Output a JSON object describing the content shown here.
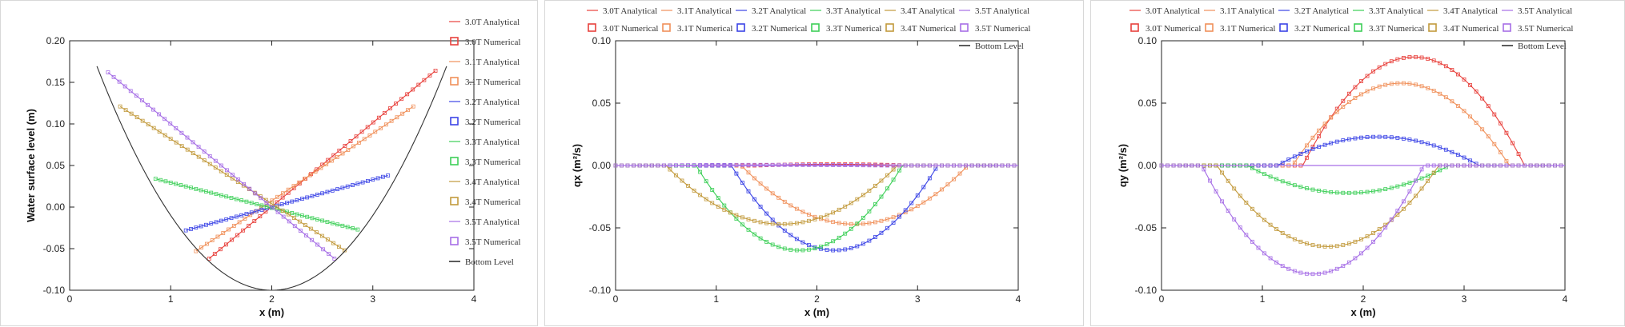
{
  "colors": {
    "3.0T": "#e8413c",
    "3.1T": "#f0905a",
    "3.2T": "#3b44e6",
    "3.3T": "#3dcf58",
    "3.4T": "#c29a3c",
    "3.5T": "#a66ee6",
    "bottom": "#333333"
  },
  "chart_data": [
    {
      "type": "line",
      "xlabel": "x (m)",
      "ylabel": "Water surface level (m)",
      "xlim": [
        0,
        4
      ],
      "ylim": [
        -0.1,
        0.2
      ],
      "xticks": [
        "0",
        "1",
        "2",
        "3",
        "4"
      ],
      "yticks": [
        "-0.10",
        "-0.05",
        "0.00",
        "0.05",
        "0.10",
        "0.15",
        "0.20"
      ],
      "legend_position": "right",
      "legend": [
        "3.0T Analytical",
        "3.0T Numerical",
        "3.1T Analytical",
        "3.1T Numerical",
        "3.2T Analytical",
        "3.2T Numerical",
        "3.3T Analytical",
        "3.3T Numerical",
        "3.4T Analytical",
        "3.4T Numerical",
        "3.5T Analytical",
        "3.5T Numerical",
        "Bottom Level"
      ],
      "bottom_level": {
        "x": [
          0.27,
          0.6,
          1.0,
          1.4,
          1.8,
          2.0,
          2.2,
          2.6,
          3.0,
          3.4,
          3.73
        ],
        "y": [
          0.2,
          0.116,
          0.044,
          -0.016,
          -0.064,
          -0.1,
          -0.096,
          -0.064,
          -0.016,
          0.044,
          0.2
        ]
      },
      "series": [
        {
          "name": "3.0T",
          "x": [
            1.38,
            3.62
          ],
          "y": [
            -0.062,
            0.164
          ]
        },
        {
          "name": "3.1T",
          "x": [
            1.25,
            3.4
          ],
          "y": [
            -0.053,
            0.121
          ]
        },
        {
          "name": "3.2T",
          "x": [
            1.15,
            3.15
          ],
          "y": [
            -0.028,
            0.038
          ]
        },
        {
          "name": "3.3T",
          "x": [
            0.85,
            2.85
          ],
          "y": [
            0.034,
            -0.027
          ]
        },
        {
          "name": "3.4T",
          "x": [
            0.5,
            2.72
          ],
          "y": [
            0.121,
            -0.052
          ]
        },
        {
          "name": "3.5T",
          "x": [
            0.38,
            2.62
          ],
          "y": [
            0.162,
            -0.062
          ]
        }
      ]
    },
    {
      "type": "line",
      "xlabel": "x (m)",
      "ylabel": "qx (m²/s)",
      "xlim": [
        0,
        4
      ],
      "ylim": [
        -0.1,
        0.1
      ],
      "xticks": [
        "0",
        "1",
        "2",
        "3",
        "4"
      ],
      "yticks": [
        "-0.10",
        "-0.05",
        "0.00",
        "0.05",
        "0.10"
      ],
      "legend_position": "top",
      "legend": [
        "3.0T Analytical",
        "3.1T Analytical",
        "3.2T Analytical",
        "3.3T Analytical",
        "3.4T Analytical",
        "3.5T Analytical",
        "3.0T Numerical",
        "3.1T Numerical",
        "3.2T Numerical",
        "3.3T Numerical",
        "3.4T Numerical",
        "3.5T Numerical",
        "Bottom Level"
      ],
      "series": [
        {
          "name": "3.0T",
          "x0": 1.4,
          "x1": 2.9,
          "peak": 0.001
        },
        {
          "name": "3.1T",
          "x0": 1.25,
          "x1": 3.5,
          "peak": -0.047
        },
        {
          "name": "3.2T",
          "x0": 1.15,
          "x1": 3.2,
          "peak": -0.068
        },
        {
          "name": "3.3T",
          "x0": 0.8,
          "x1": 2.85,
          "peak": -0.068
        },
        {
          "name": "3.4T",
          "x0": 0.5,
          "x1": 2.8,
          "peak": -0.047
        },
        {
          "name": "3.5T",
          "x0": 0.4,
          "x1": 2.7,
          "peak": 0.0005
        }
      ]
    },
    {
      "type": "line",
      "xlabel": "x (m)",
      "ylabel": "qy (m²/s)",
      "xlim": [
        0,
        4
      ],
      "ylim": [
        -0.1,
        0.1
      ],
      "xticks": [
        "0",
        "1",
        "2",
        "3",
        "4"
      ],
      "yticks": [
        "-0.10",
        "-0.05",
        "0.00",
        "0.05",
        "0.10"
      ],
      "legend_position": "top",
      "legend": [
        "3.0T Analytical",
        "3.1T Analytical",
        "3.2T Analytical",
        "3.3T Analytical",
        "3.4T Analytical",
        "3.5T Analytical",
        "3.0T Numerical",
        "3.1T Numerical",
        "3.2T Numerical",
        "3.3T Numerical",
        "3.4T Numerical",
        "3.5T Numerical",
        "Bottom Level"
      ],
      "series": [
        {
          "name": "3.0T",
          "x0": 1.4,
          "x1": 3.6,
          "peak": 0.087
        },
        {
          "name": "3.1T",
          "x0": 1.3,
          "x1": 3.45,
          "peak": 0.066
        },
        {
          "name": "3.2T",
          "x0": 1.15,
          "x1": 3.15,
          "peak": 0.023
        },
        {
          "name": "3.3T",
          "x0": 0.85,
          "x1": 2.85,
          "peak": -0.022
        },
        {
          "name": "3.4T",
          "x0": 0.55,
          "x1": 2.75,
          "peak": -0.065
        },
        {
          "name": "3.5T",
          "x0": 0.4,
          "x1": 2.6,
          "peak": -0.087
        }
      ]
    }
  ]
}
